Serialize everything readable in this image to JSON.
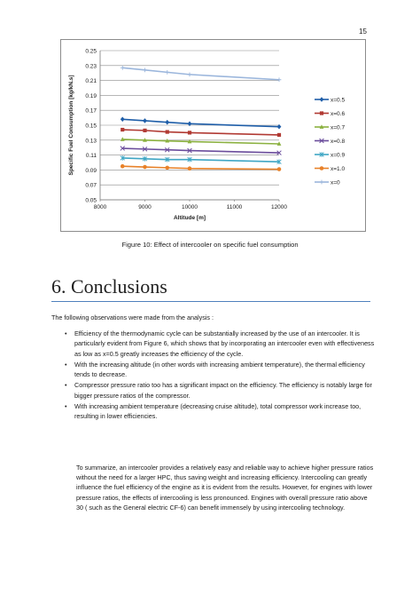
{
  "page_number": "15",
  "figure": {
    "caption": "Figure 10: Effect of intercooler on specific fuel consumption",
    "chart_data": {
      "type": "line",
      "title": "",
      "xlabel": "Altitude [m]",
      "ylabel": "Specific Fuel Consumption [kg/kN.s]",
      "xlim": [
        8000,
        12000
      ],
      "ylim": [
        0.05,
        0.25
      ],
      "x_ticks": [
        "8000",
        "9000",
        "10000",
        "11000",
        "12000"
      ],
      "y_ticks": [
        "0.05",
        "0.07",
        "0.09",
        "0.11",
        "0.13",
        "0.15",
        "0.17",
        "0.19",
        "0.21",
        "0.23",
        "0.25"
      ],
      "grid": true,
      "legend": "right",
      "x": [
        8500,
        9000,
        9500,
        10000,
        12000
      ],
      "series": [
        {
          "name": "x=0.5",
          "color": "#1f5ea8",
          "marker": "diamond",
          "values": [
            0.158,
            0.156,
            0.154,
            0.152,
            0.148
          ]
        },
        {
          "name": "x=0.6",
          "color": "#b13a33",
          "marker": "square",
          "values": [
            0.144,
            0.143,
            0.141,
            0.14,
            0.137
          ]
        },
        {
          "name": "x=0.7",
          "color": "#8bb140",
          "marker": "triangle",
          "values": [
            0.131,
            0.13,
            0.129,
            0.128,
            0.125
          ]
        },
        {
          "name": "x=0.8",
          "color": "#6b4d9c",
          "marker": "x",
          "values": [
            0.119,
            0.118,
            0.117,
            0.116,
            0.113
          ]
        },
        {
          "name": "x=0.9",
          "color": "#3fa6c4",
          "marker": "asterisk",
          "values": [
            0.106,
            0.105,
            0.104,
            0.104,
            0.101
          ]
        },
        {
          "name": "x=1.0",
          "color": "#e8822a",
          "marker": "circle",
          "values": [
            0.095,
            0.094,
            0.093,
            0.092,
            0.091
          ]
        },
        {
          "name": "x=0",
          "color": "#9bb6dc",
          "marker": "plus",
          "values": [
            0.227,
            0.224,
            0.221,
            0.218,
            0.211
          ]
        }
      ]
    }
  },
  "section": {
    "number": "6.",
    "title": "Conclusions"
  },
  "intro": "The following observations were made from the analysis :",
  "bullet_symbol": "•",
  "bullets": [
    "Efficiency of the thermodynamic cycle can be substantially increased by the use of an intercooler. It is particularly evident from Figure 6, which shows that by incorporating an intercooler even with effectiveness as low as x=0.5 greatly increases the efficiency of the cycle.",
    "With the increasing altitude (in other words with increasing ambient temperature), the thermal efficiency tends to decrease.",
    "Compressor pressure ratio too has a significant impact on the efficiency. The efficiency is notably large for bigger pressure ratios of the compressor.",
    "With increasing ambient temperature (decreasing cruise altitude), total compressor work increase too, resulting in lower efficiencies."
  ],
  "summary": "To summarize, an intercooler provides a relatively easy and reliable way to achieve higher pressure ratios without the need for a larger HPC, thus saving weight and increasing efficiency. Intercooling can greatly influence the fuel efficiency of the engine as it is evident from the results. However, for engines with lower pressure ratios, the effects of intercooling is less pronounced. Engines with overall pressure ratio above 30 ( such as the General electric CF-6) can benefit immensely by using intercooling technology."
}
